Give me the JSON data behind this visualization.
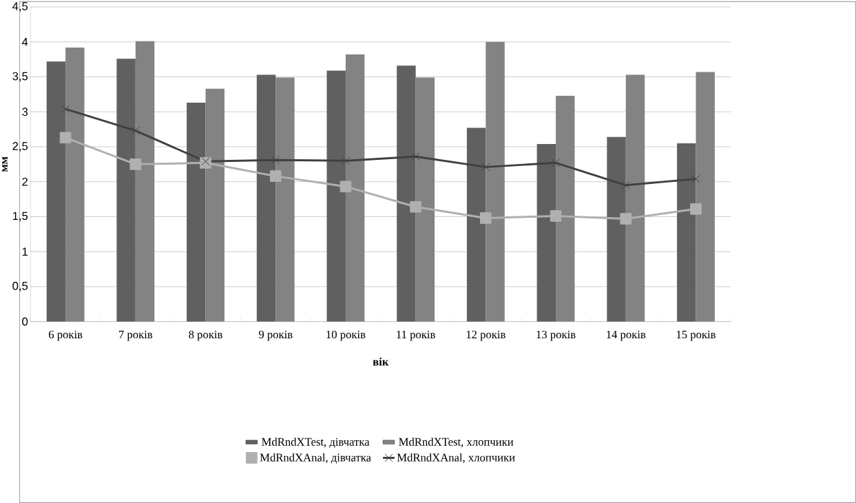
{
  "chart_data": {
    "type": "bar",
    "xlabel": "вік",
    "ylabel": "мм",
    "categories": [
      "6 років",
      "7 років",
      "8 років",
      "9 років",
      "10 років",
      "11 років",
      "12 років",
      "13 років",
      "14 років",
      "15 років"
    ],
    "series": [
      {
        "name": "MdRndXTest, дівчатка",
        "color": "#606060",
        "values": [
          3.72,
          3.76,
          3.13,
          3.53,
          3.59,
          3.66,
          2.77,
          2.54,
          2.64,
          2.55
        ]
      },
      {
        "name": "MdRndXTest, хлопчики",
        "color": "#838383",
        "values": [
          3.92,
          4.01,
          3.33,
          3.49,
          3.82,
          3.49,
          4.0,
          3.23,
          3.53,
          3.57
        ]
      },
      {
        "name": "MdRndXAnal, дівчатка",
        "type": "line",
        "marker": "square",
        "color": "#b0b0b0",
        "values": [
          2.63,
          2.25,
          2.27,
          2.08,
          1.93,
          1.64,
          1.48,
          1.51,
          1.47,
          1.61
        ]
      },
      {
        "name": "MdRndXAnal, хлопчики",
        "type": "line",
        "marker": "cross",
        "color": "#404040",
        "values": [
          3.04,
          2.73,
          2.29,
          2.31,
          2.3,
          2.36,
          2.21,
          2.27,
          1.95,
          2.04
        ]
      }
    ],
    "ylim": [
      0,
      4.5
    ],
    "yticks": [
      0,
      {
        "value": 0.5,
        "label": "0,5"
      },
      1,
      {
        "value": 1.5,
        "label": "1,5"
      },
      2,
      {
        "value": 2.5,
        "label": "2,5"
      },
      3,
      {
        "value": 3.5,
        "label": "3,5"
      },
      4,
      {
        "value": 4.5,
        "label": "4,5"
      }
    ],
    "grid": "y",
    "legend": "bottom"
  }
}
